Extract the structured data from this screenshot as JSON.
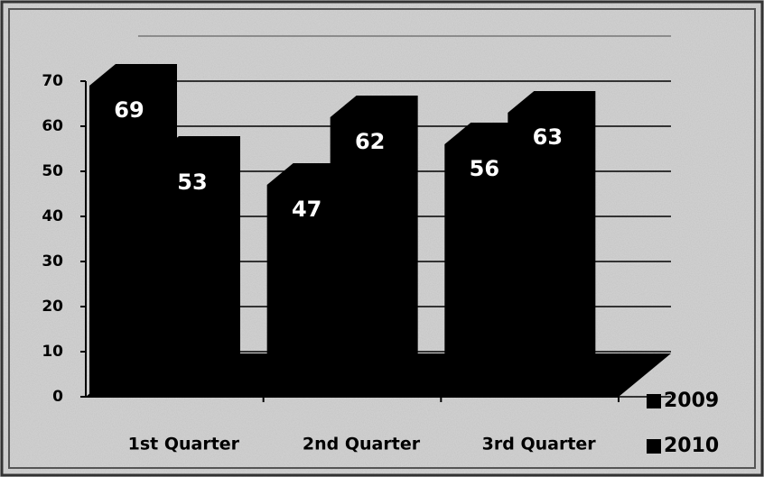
{
  "chart_data": {
    "type": "bar3d",
    "categories": [
      "1st Quarter",
      "2nd Quarter",
      "3rd Quarter"
    ],
    "series": [
      {
        "name": "2009",
        "color": "#000000",
        "values": [
          69,
          47,
          56
        ]
      },
      {
        "name": "2010",
        "color": "#000000",
        "values": [
          53,
          62,
          63
        ]
      }
    ],
    "ylim": [
      0,
      80
    ],
    "yticks": [
      0,
      10,
      20,
      30,
      40,
      50,
      60,
      70
    ],
    "grid": true,
    "legend": "bottom-right"
  }
}
